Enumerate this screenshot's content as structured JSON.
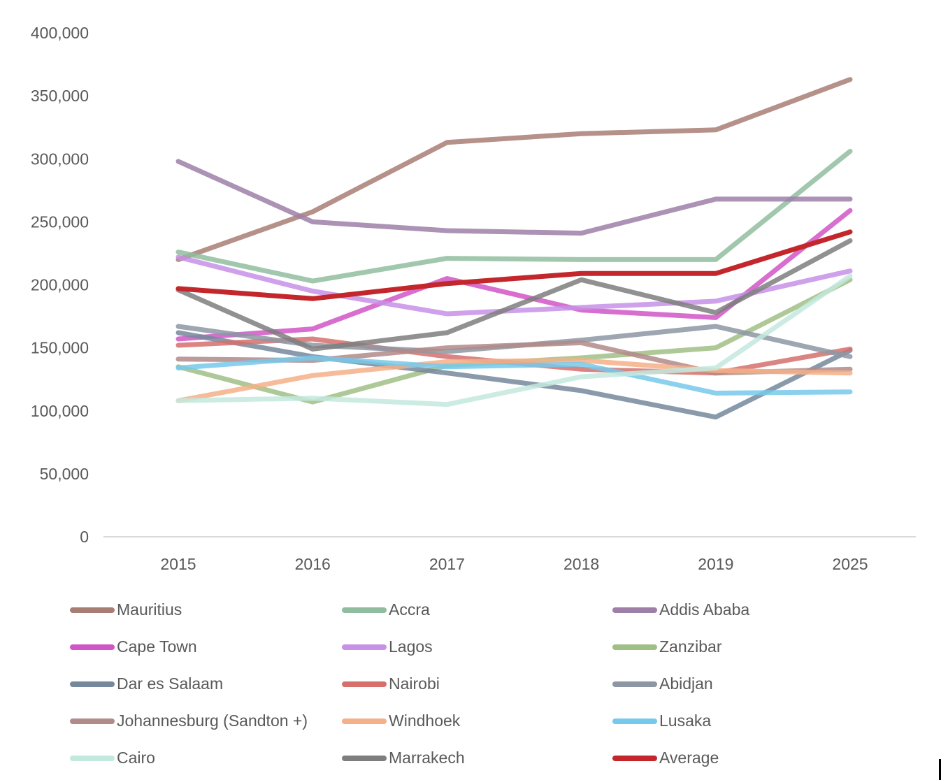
{
  "chart_data": {
    "type": "line",
    "x_categories": [
      "2015",
      "2016",
      "2017",
      "2018",
      "2019",
      "2025"
    ],
    "ytick_labels": [
      "400,000",
      "350,000",
      "300,000",
      "250,000",
      "200,000",
      "150,000",
      "100,000",
      "50,000",
      "0"
    ],
    "ylim": [
      0,
      400000
    ],
    "ytick_interval": 50000,
    "grid": "baseline-only",
    "legend_position": "bottom",
    "title": "",
    "xlabel": "",
    "ylabel": "",
    "series": [
      {
        "name": "Mauritius",
        "color": "#A87E74",
        "values": [
          220000,
          258000,
          313000,
          320000,
          323000,
          363000
        ]
      },
      {
        "name": "Accra",
        "color": "#90BD9F",
        "values": [
          226000,
          203000,
          221000,
          220000,
          220000,
          306000
        ]
      },
      {
        "name": "Addis Ababa",
        "color": "#9E7FA7",
        "values": [
          298000,
          250000,
          243000,
          241000,
          268000,
          268000
        ]
      },
      {
        "name": "Cape Town",
        "color": "#D155C6",
        "values": [
          157000,
          165000,
          205000,
          180000,
          174000,
          259000
        ]
      },
      {
        "name": "Lagos",
        "color": "#C791E8",
        "values": [
          222000,
          195000,
          177000,
          182000,
          187000,
          211000
        ]
      },
      {
        "name": "Zanzibar",
        "color": "#A0BF85",
        "values": [
          135000,
          107000,
          136000,
          142000,
          150000,
          204000
        ]
      },
      {
        "name": "Dar es Salaam",
        "color": "#76889C",
        "values": [
          162000,
          143000,
          130000,
          116000,
          95000,
          148000
        ]
      },
      {
        "name": "Nairobi",
        "color": "#D5706C",
        "values": [
          152000,
          157000,
          143000,
          133000,
          130000,
          149000
        ]
      },
      {
        "name": "Abidjan",
        "color": "#8D96A3",
        "values": [
          167000,
          152000,
          147000,
          156000,
          167000,
          143000
        ]
      },
      {
        "name": "Johannesburg (Sandton +)",
        "color": "#B28A8A",
        "values": [
          141000,
          140000,
          150000,
          154000,
          130000,
          133000
        ]
      },
      {
        "name": "Windhoek",
        "color": "#F4B088",
        "values": [
          108000,
          128000,
          139000,
          140000,
          132000,
          130000
        ]
      },
      {
        "name": "Lusaka",
        "color": "#77C9EB",
        "values": [
          134000,
          142000,
          135000,
          137000,
          114000,
          115000
        ]
      },
      {
        "name": "Cairo",
        "color": "#C3E9DE",
        "values": [
          108000,
          110000,
          105000,
          127000,
          134000,
          207000
        ]
      },
      {
        "name": "Marrakech",
        "color": "#7E7E7E",
        "values": [
          196000,
          149000,
          162000,
          204000,
          178000,
          235000
        ]
      },
      {
        "name": "Average",
        "color": "#C3272B",
        "values": [
          197000,
          189000,
          201000,
          209000,
          209000,
          242000
        ]
      }
    ]
  }
}
